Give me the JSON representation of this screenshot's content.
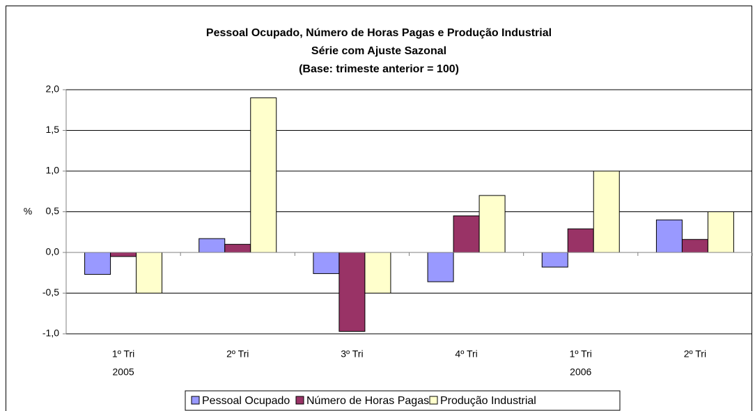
{
  "chart_data": {
    "type": "bar",
    "title": [
      "Pessoal Ocupado, Número de Horas Pagas e Produção Industrial",
      "Série com Ajuste Sazonal",
      "(Base: trimeste anterior = 100)"
    ],
    "y_label": "%",
    "categories": [
      "1º Tri",
      "2º Tri",
      "3º Tri",
      "4º Tri",
      "1º Tri",
      "2º Tri"
    ],
    "category_years": [
      "2005",
      null,
      null,
      null,
      "2006",
      null
    ],
    "series": [
      {
        "name": "Pessoal Ocupado",
        "color": "#9999ff",
        "values": [
          -0.27,
          0.17,
          -0.26,
          -0.36,
          -0.18,
          0.4
        ]
      },
      {
        "name": "Número de Horas Pagas",
        "color": "#993366",
        "values": [
          -0.05,
          0.1,
          -0.97,
          0.45,
          0.29,
          0.16
        ]
      },
      {
        "name": "Produção Industrial",
        "color": "#ffffcc",
        "values": [
          -0.5,
          1.9,
          -0.5,
          0.7,
          1.0,
          0.5
        ]
      }
    ],
    "ylim": [
      -1,
      2
    ],
    "yticks": [
      {
        "value": -1,
        "label": "-1,0"
      },
      {
        "value": -0.5,
        "label": "-0,5"
      },
      {
        "value": 0,
        "label": "0,0"
      },
      {
        "value": 0.5,
        "label": "0,5"
      },
      {
        "value": 1,
        "label": "1,0"
      },
      {
        "value": 1.5,
        "label": "1,5"
      },
      {
        "value": 2,
        "label": "2,0"
      }
    ],
    "grid": true,
    "legend": "bottom"
  }
}
